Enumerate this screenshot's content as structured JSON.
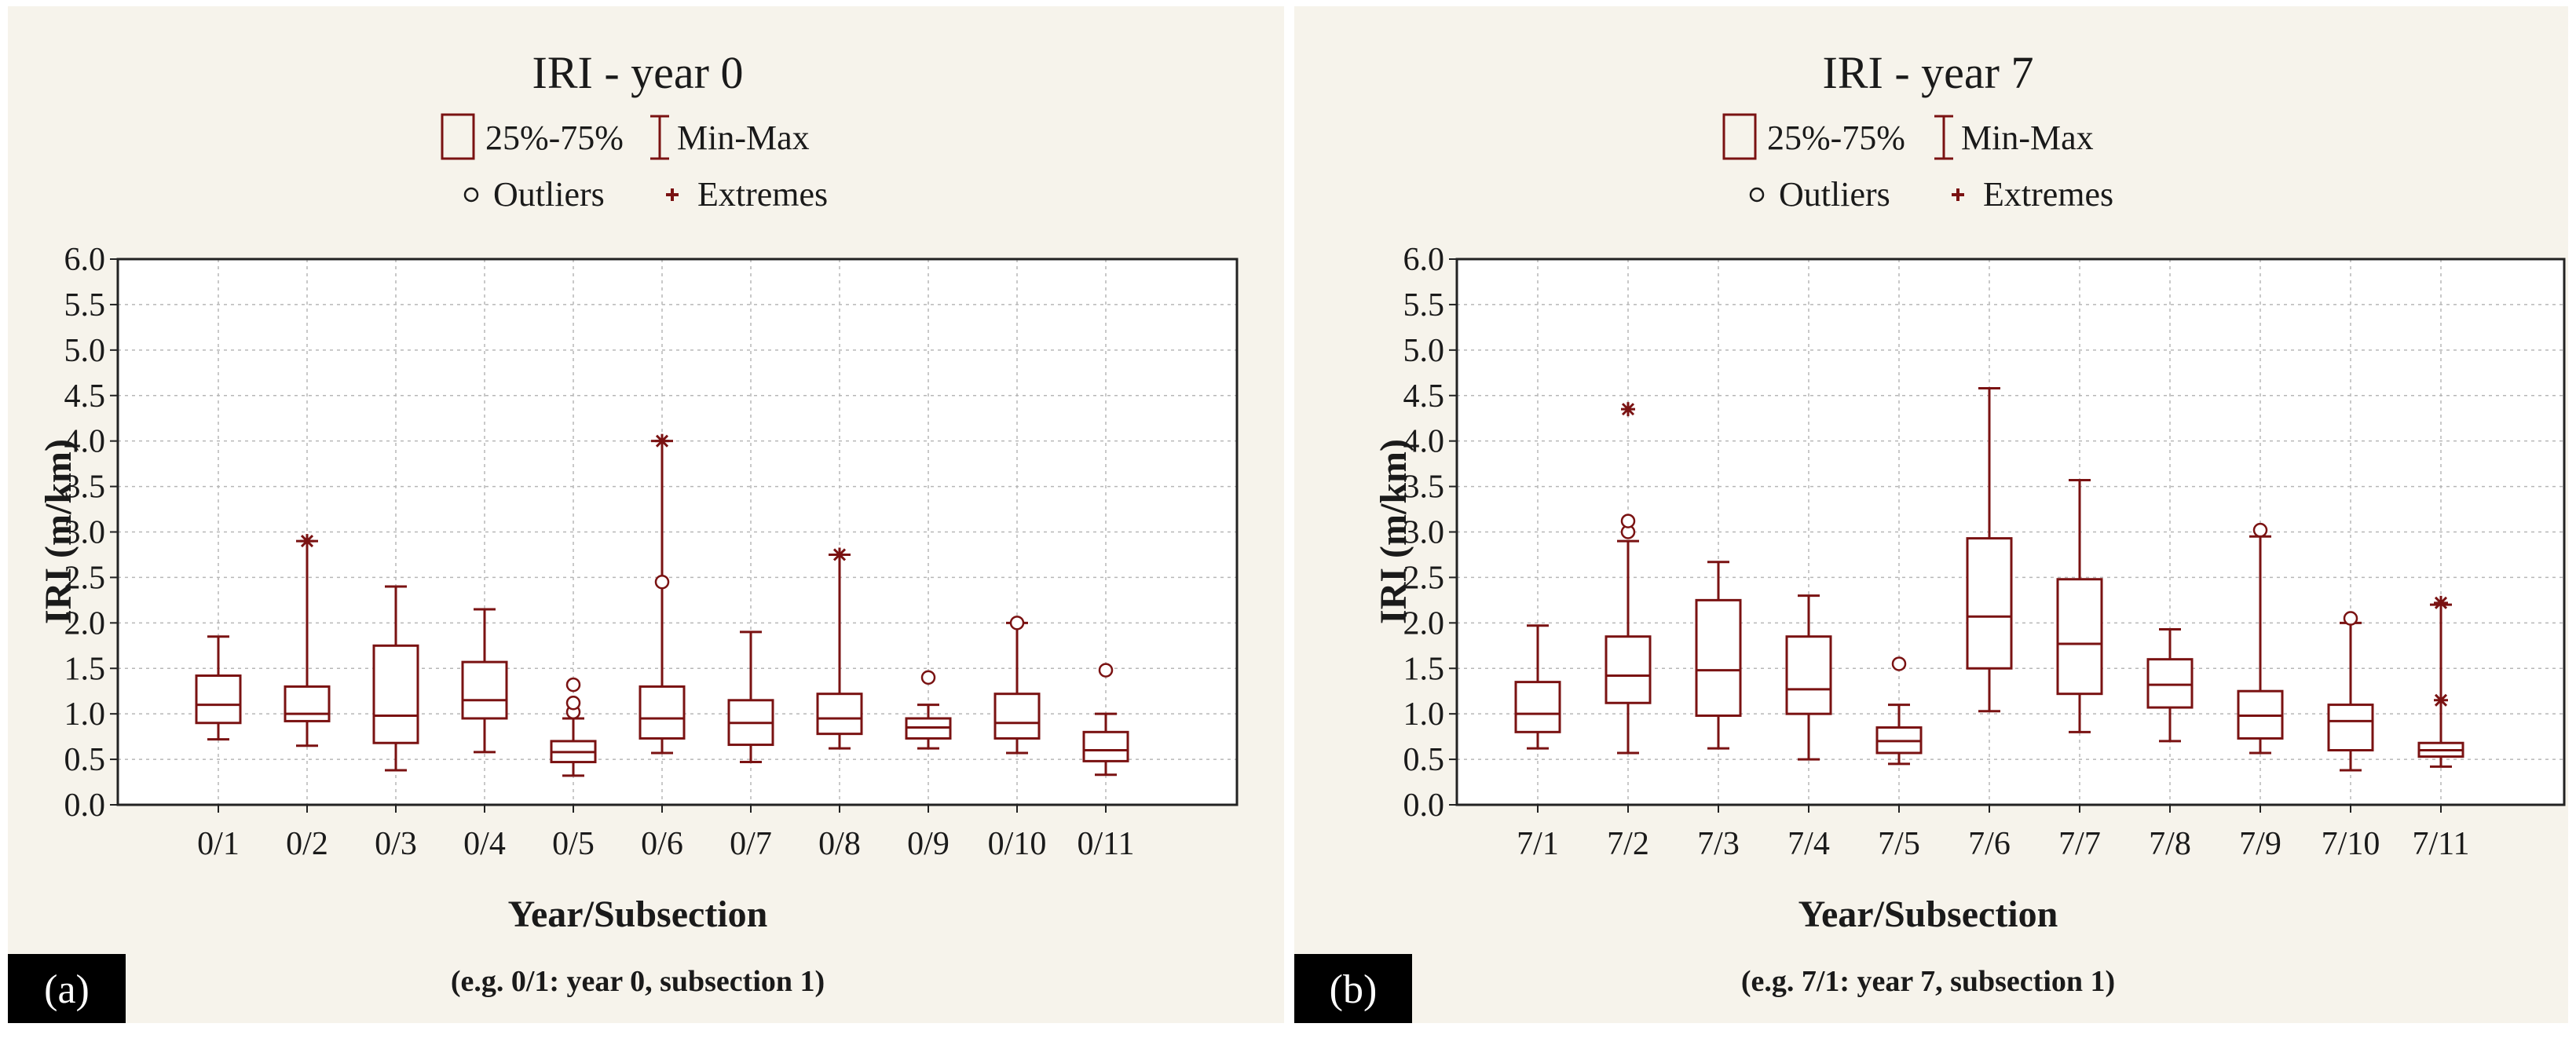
{
  "figure": {
    "background": "#f6f3eb",
    "box_color": "#7a1212",
    "grid_color": "#b7b7b7"
  },
  "chart_data": [
    {
      "type": "box",
      "panel_tag": "(a)",
      "title": "IRI - year 0",
      "legend": {
        "box": "25%-75%",
        "whisker": "Min-Max",
        "outliers": "Outliers",
        "extremes": "Extremes"
      },
      "xlabel": "Year/Subsection",
      "xnote": "(e.g. 0/1: year 0, subsection 1)",
      "ylabel": "IRI (m/km)",
      "ylim": [
        0,
        6
      ],
      "yticks": [
        "0.0",
        "0.5",
        "1.0",
        "1.5",
        "2.0",
        "2.5",
        "3.0",
        "3.5",
        "4.0",
        "4.5",
        "5.0",
        "5.5",
        "6.0"
      ],
      "categories": [
        "0/1",
        "0/2",
        "0/3",
        "0/4",
        "0/5",
        "0/6",
        "0/7",
        "0/8",
        "0/9",
        "0/10",
        "0/11"
      ],
      "boxes": [
        {
          "min": 0.72,
          "q1": 0.9,
          "median": 1.1,
          "q3": 1.42,
          "max": 1.85,
          "outliers": [],
          "extremes": []
        },
        {
          "min": 0.65,
          "q1": 0.92,
          "median": 1.0,
          "q3": 1.3,
          "max": 2.9,
          "outliers": [],
          "extremes": [
            2.9
          ]
        },
        {
          "min": 0.38,
          "q1": 0.68,
          "median": 0.98,
          "q3": 1.75,
          "max": 2.4,
          "outliers": [],
          "extremes": []
        },
        {
          "min": 0.58,
          "q1": 0.95,
          "median": 1.15,
          "q3": 1.57,
          "max": 2.15,
          "outliers": [],
          "extremes": []
        },
        {
          "min": 0.32,
          "q1": 0.47,
          "median": 0.58,
          "q3": 0.7,
          "max": 0.95,
          "outliers": [
            1.02,
            1.12,
            1.32
          ],
          "extremes": []
        },
        {
          "min": 0.57,
          "q1": 0.73,
          "median": 0.95,
          "q3": 1.3,
          "max": 4.0,
          "outliers": [
            2.45
          ],
          "extremes": [
            4.0
          ]
        },
        {
          "min": 0.47,
          "q1": 0.66,
          "median": 0.9,
          "q3": 1.15,
          "max": 1.9,
          "outliers": [],
          "extremes": []
        },
        {
          "min": 0.62,
          "q1": 0.78,
          "median": 0.95,
          "q3": 1.22,
          "max": 2.75,
          "outliers": [],
          "extremes": [
            2.75
          ]
        },
        {
          "min": 0.62,
          "q1": 0.73,
          "median": 0.85,
          "q3": 0.95,
          "max": 1.1,
          "outliers": [
            1.4
          ],
          "extremes": []
        },
        {
          "min": 0.57,
          "q1": 0.73,
          "median": 0.9,
          "q3": 1.22,
          "max": 2.0,
          "outliers": [
            2.0
          ],
          "extremes": []
        },
        {
          "min": 0.33,
          "q1": 0.48,
          "median": 0.6,
          "q3": 0.8,
          "max": 1.0,
          "outliers": [
            1.48
          ],
          "extremes": []
        }
      ]
    },
    {
      "type": "box",
      "panel_tag": "(b)",
      "title": "IRI - year 7",
      "legend": {
        "box": "25%-75%",
        "whisker": "Min-Max",
        "outliers": "Outliers",
        "extremes": "Extremes"
      },
      "xlabel": "Year/Subsection",
      "xnote": "(e.g. 7/1: year 7, subsection 1)",
      "ylabel": "IRI (m/km)",
      "ylim": [
        0,
        6
      ],
      "yticks": [
        "0.0",
        "0.5",
        "1.0",
        "1.5",
        "2.0",
        "2.5",
        "3.0",
        "3.5",
        "4.0",
        "4.5",
        "5.0",
        "5.5",
        "6.0"
      ],
      "categories": [
        "7/1",
        "7/2",
        "7/3",
        "7/4",
        "7/5",
        "7/6",
        "7/7",
        "7/8",
        "7/9",
        "7/10",
        "7/11"
      ],
      "boxes": [
        {
          "min": 0.62,
          "q1": 0.8,
          "median": 1.0,
          "q3": 1.35,
          "max": 1.97,
          "outliers": [],
          "extremes": []
        },
        {
          "min": 0.57,
          "q1": 1.12,
          "median": 1.42,
          "q3": 1.85,
          "max": 2.9,
          "outliers": [
            3.0,
            3.12
          ],
          "extremes": [
            4.35
          ]
        },
        {
          "min": 0.62,
          "q1": 0.98,
          "median": 1.48,
          "q3": 2.25,
          "max": 2.67,
          "outliers": [],
          "extremes": []
        },
        {
          "min": 0.5,
          "q1": 1.0,
          "median": 1.27,
          "q3": 1.85,
          "max": 2.3,
          "outliers": [],
          "extremes": []
        },
        {
          "min": 0.45,
          "q1": 0.57,
          "median": 0.7,
          "q3": 0.85,
          "max": 1.1,
          "outliers": [
            1.55
          ],
          "extremes": []
        },
        {
          "min": 1.03,
          "q1": 1.5,
          "median": 2.07,
          "q3": 2.93,
          "max": 4.58,
          "outliers": [],
          "extremes": []
        },
        {
          "min": 0.8,
          "q1": 1.22,
          "median": 1.77,
          "q3": 2.48,
          "max": 3.57,
          "outliers": [],
          "extremes": []
        },
        {
          "min": 0.7,
          "q1": 1.07,
          "median": 1.32,
          "q3": 1.6,
          "max": 1.93,
          "outliers": [],
          "extremes": []
        },
        {
          "min": 0.57,
          "q1": 0.73,
          "median": 0.98,
          "q3": 1.25,
          "max": 2.95,
          "outliers": [
            3.02
          ],
          "extremes": []
        },
        {
          "min": 0.38,
          "q1": 0.6,
          "median": 0.92,
          "q3": 1.1,
          "max": 2.0,
          "outliers": [
            2.05
          ],
          "extremes": []
        },
        {
          "min": 0.42,
          "q1": 0.53,
          "median": 0.6,
          "q3": 0.68,
          "max": 2.2,
          "outliers": [],
          "extremes": [
            1.15,
            2.22
          ]
        }
      ]
    }
  ]
}
